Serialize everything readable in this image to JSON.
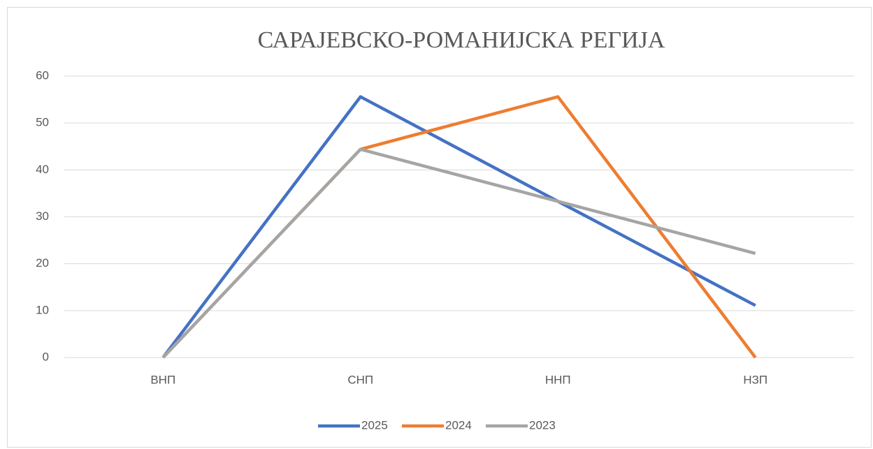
{
  "chart_data": {
    "type": "line",
    "title": "САРАЈЕВСКО-РОМАНИЈСКА РЕГИЈА",
    "categories": [
      "ВНП",
      "СНП",
      "ННП",
      "НЗП"
    ],
    "series": [
      {
        "name": "2025",
        "color": "#4472c4",
        "values": [
          0,
          55.6,
          33.3,
          11.1
        ]
      },
      {
        "name": "2024",
        "color": "#ed7d31",
        "values": [
          0,
          44.4,
          55.6,
          0
        ]
      },
      {
        "name": "2023",
        "color": "#a5a5a5",
        "values": [
          0,
          44.4,
          33.3,
          22.2
        ]
      }
    ],
    "ylim": [
      0,
      60
    ],
    "yticks": [
      0,
      10,
      20,
      30,
      40,
      50,
      60
    ],
    "grid": true,
    "legend": "bottom"
  }
}
